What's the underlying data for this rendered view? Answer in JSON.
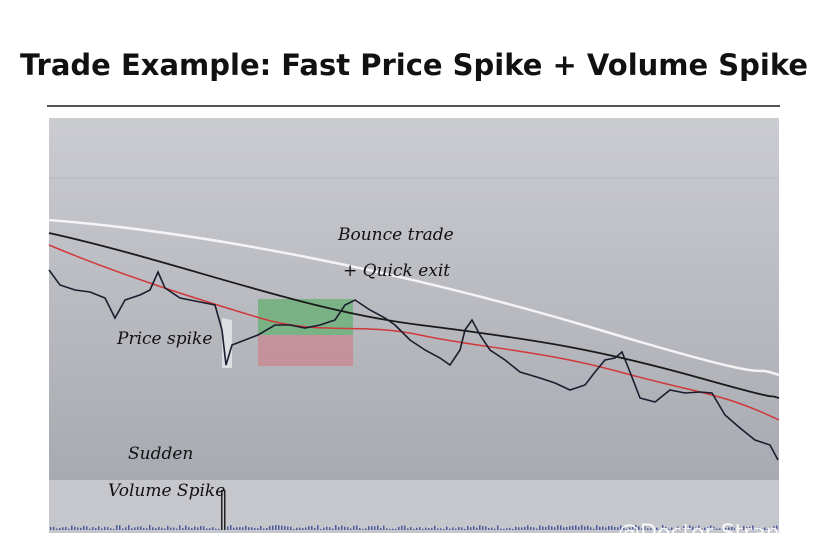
{
  "header": {
    "title": "Trade Example: Fast Price Spike + Volume Spike"
  },
  "annotations": {
    "bounce_line1": "Bounce trade",
    "bounce_line2": "+ Quick exit",
    "price_spike": "Price spike",
    "volume_line1": "Sudden",
    "volume_line2": "Volume Spike"
  },
  "watermark": "@Doctor Strange"
}
